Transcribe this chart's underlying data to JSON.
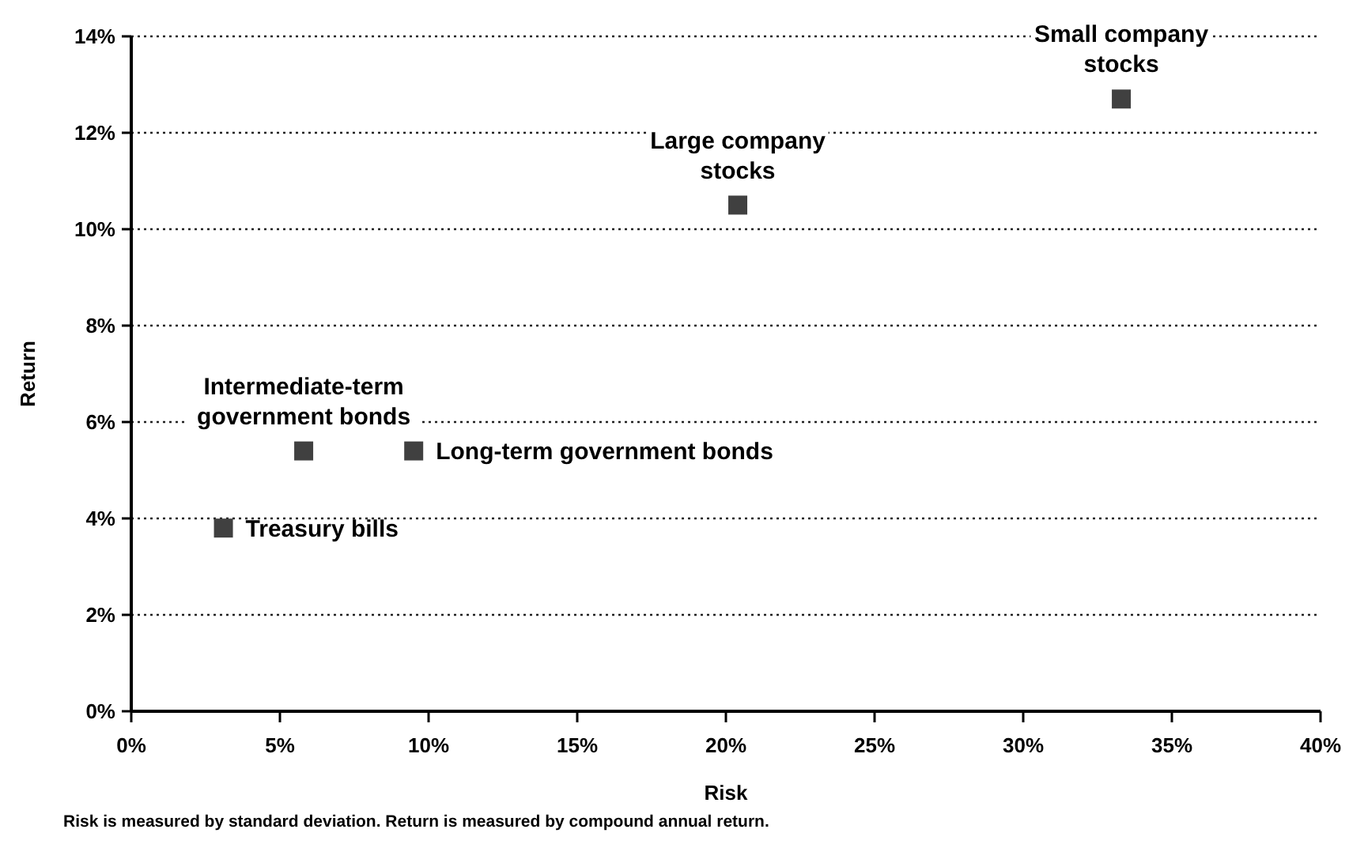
{
  "chart_data": {
    "type": "scatter",
    "xlabel": "Risk",
    "ylabel": "Return",
    "x": [
      3.1,
      5.8,
      9.5,
      20.4,
      33.3
    ],
    "series": [
      {
        "color": "#404040",
        "values": [
          3.8,
          5.4,
          5.4,
          10.5,
          12.7
        ]
      }
    ],
    "marker": "square",
    "grid": "y",
    "xlim": [
      0,
      40
    ],
    "xticks": [
      {
        "value": 0,
        "label": "0%"
      },
      {
        "value": 5,
        "label": "5%"
      },
      {
        "value": 10,
        "label": "10%"
      },
      {
        "value": 15,
        "label": "15%"
      },
      {
        "value": 20,
        "label": "20%"
      },
      {
        "value": 25,
        "label": "25%"
      },
      {
        "value": 30,
        "label": "30%"
      },
      {
        "value": 35,
        "label": "35%"
      },
      {
        "value": 40,
        "label": "40%"
      }
    ],
    "ylim": [
      0,
      14
    ],
    "yticks": [
      {
        "value": 0,
        "label": "0%"
      },
      {
        "value": 2,
        "label": "2%"
      },
      {
        "value": 4,
        "label": "4%"
      },
      {
        "value": 6,
        "label": "6%"
      },
      {
        "value": 8,
        "label": "8%"
      },
      {
        "value": 10,
        "label": "10%"
      },
      {
        "value": 12,
        "label": "12%"
      },
      {
        "value": 14,
        "label": "14%"
      }
    ],
    "annotations": [
      {
        "text": "Treasury bills",
        "x": 3.1,
        "y": 3.8
      },
      {
        "text": "Intermediate-term government bonds",
        "x": 5.8,
        "y": 5.4
      },
      {
        "text": "Long-term government bonds",
        "x": 9.5,
        "y": 5.4
      },
      {
        "text": "Large company stocks",
        "x": 20.4,
        "y": 10.5
      },
      {
        "text": "Small company stocks",
        "x": 33.3,
        "y": 12.7
      },
      "Risk is measured by standard deviation. Return is measured by compound annual return."
    ]
  }
}
